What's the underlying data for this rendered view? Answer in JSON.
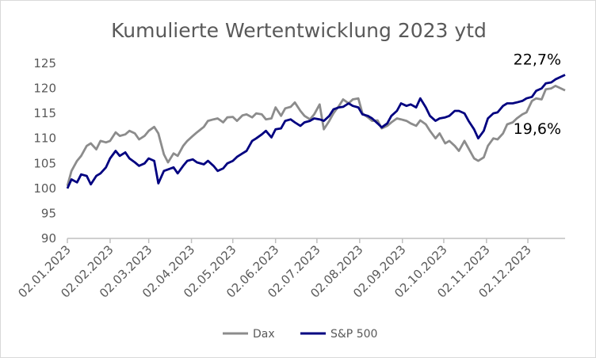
{
  "chart_data": {
    "type": "line",
    "title": "Kumulierte Wertentwicklung 2023 ytd",
    "xlabel": "",
    "ylabel": "",
    "ylim": [
      90,
      125
    ],
    "yticks": [
      90,
      95,
      100,
      105,
      110,
      115,
      120,
      125
    ],
    "xticks": [
      "02.01.2023",
      "02.02.2023",
      "02.03.2023",
      "02.04.2023",
      "02.05.2023",
      "02.06.2023",
      "02.07.2023",
      "02.08.2023",
      "02.09.2023",
      "02.10.2023",
      "02.11.2023",
      "02.12.2023"
    ],
    "xlim": [
      "2023-01-02",
      "2023-12-29"
    ],
    "grid": false,
    "legend": "bottom",
    "colors": {
      "dax": "#8c8c8c",
      "sp500": "#000080",
      "axis": "#bfbfbf"
    },
    "annotations": [
      {
        "text": "22,7%",
        "series": "S&P 500"
      },
      {
        "text": "19,6%",
        "series": "Dax"
      }
    ],
    "series": [
      {
        "name": "Dax",
        "x": [
          "2023-01-02",
          "2023-01-05",
          "2023-01-09",
          "2023-01-12",
          "2023-01-16",
          "2023-01-19",
          "2023-01-23",
          "2023-01-26",
          "2023-01-30",
          "2023-02-02",
          "2023-02-06",
          "2023-02-09",
          "2023-02-13",
          "2023-02-16",
          "2023-02-20",
          "2023-02-23",
          "2023-02-27",
          "2023-03-02",
          "2023-03-06",
          "2023-03-09",
          "2023-03-13",
          "2023-03-16",
          "2023-03-20",
          "2023-03-23",
          "2023-03-27",
          "2023-03-30",
          "2023-04-03",
          "2023-04-06",
          "2023-04-11",
          "2023-04-14",
          "2023-04-18",
          "2023-04-21",
          "2023-04-25",
          "2023-04-28",
          "2023-05-02",
          "2023-05-05",
          "2023-05-09",
          "2023-05-12",
          "2023-05-16",
          "2023-05-19",
          "2023-05-23",
          "2023-05-26",
          "2023-05-30",
          "2023-06-02",
          "2023-06-06",
          "2023-06-09",
          "2023-06-13",
          "2023-06-16",
          "2023-06-20",
          "2023-06-23",
          "2023-06-27",
          "2023-06-30",
          "2023-07-04",
          "2023-07-07",
          "2023-07-11",
          "2023-07-14",
          "2023-07-18",
          "2023-07-21",
          "2023-07-25",
          "2023-07-28",
          "2023-08-01",
          "2023-08-04",
          "2023-08-08",
          "2023-08-11",
          "2023-08-15",
          "2023-08-18",
          "2023-08-22",
          "2023-08-25",
          "2023-08-29",
          "2023-09-01",
          "2023-09-05",
          "2023-09-08",
          "2023-09-12",
          "2023-09-15",
          "2023-09-19",
          "2023-09-22",
          "2023-09-26",
          "2023-09-29",
          "2023-10-03",
          "2023-10-06",
          "2023-10-10",
          "2023-10-13",
          "2023-10-17",
          "2023-10-20",
          "2023-10-24",
          "2023-10-27",
          "2023-10-31",
          "2023-11-03",
          "2023-11-07",
          "2023-11-10",
          "2023-11-14",
          "2023-11-17",
          "2023-11-21",
          "2023-11-24",
          "2023-11-28",
          "2023-12-01",
          "2023-12-05",
          "2023-12-08",
          "2023-12-12",
          "2023-12-15",
          "2023-12-19",
          "2023-12-22",
          "2023-12-29"
        ],
        "values": [
          100.5,
          103.5,
          105.5,
          106.5,
          108.5,
          109.0,
          107.8,
          109.5,
          109.2,
          109.5,
          111.2,
          110.5,
          110.8,
          111.5,
          111.0,
          109.8,
          110.5,
          111.5,
          112.3,
          111.0,
          106.8,
          105.2,
          107.0,
          106.5,
          108.5,
          109.5,
          110.5,
          111.2,
          112.3,
          113.5,
          113.8,
          114.0,
          113.2,
          114.2,
          114.3,
          113.5,
          114.6,
          114.8,
          114.2,
          115.0,
          114.8,
          113.8,
          114.0,
          116.2,
          114.5,
          116.0,
          116.3,
          117.2,
          115.5,
          114.5,
          113.8,
          114.8,
          116.8,
          111.8,
          113.5,
          115.0,
          116.5,
          117.8,
          117.0,
          117.8,
          118.0,
          115.0,
          114.2,
          113.5,
          113.6,
          112.0,
          112.5,
          113.2,
          114.0,
          113.8,
          113.5,
          113.0,
          112.5,
          113.6,
          112.8,
          111.5,
          110.0,
          111.0,
          109.0,
          109.5,
          108.5,
          107.5,
          109.5,
          108.0,
          106.0,
          105.5,
          106.2,
          108.5,
          110.0,
          109.8,
          111.0,
          112.8,
          113.2,
          114.0,
          114.8,
          115.2,
          117.5,
          118.0,
          117.8,
          119.8,
          120.0,
          120.5,
          119.6
        ]
      },
      {
        "name": "S&P 500",
        "x": [
          "2023-01-02",
          "2023-01-05",
          "2023-01-09",
          "2023-01-12",
          "2023-01-16",
          "2023-01-19",
          "2023-01-23",
          "2023-01-26",
          "2023-01-30",
          "2023-02-02",
          "2023-02-06",
          "2023-02-09",
          "2023-02-13",
          "2023-02-16",
          "2023-02-20",
          "2023-02-23",
          "2023-02-27",
          "2023-03-02",
          "2023-03-06",
          "2023-03-09",
          "2023-03-13",
          "2023-03-16",
          "2023-03-20",
          "2023-03-23",
          "2023-03-27",
          "2023-03-30",
          "2023-04-03",
          "2023-04-06",
          "2023-04-11",
          "2023-04-14",
          "2023-04-18",
          "2023-04-21",
          "2023-04-25",
          "2023-04-28",
          "2023-05-02",
          "2023-05-05",
          "2023-05-09",
          "2023-05-12",
          "2023-05-16",
          "2023-05-19",
          "2023-05-23",
          "2023-05-26",
          "2023-05-30",
          "2023-06-02",
          "2023-06-06",
          "2023-06-09",
          "2023-06-13",
          "2023-06-16",
          "2023-06-20",
          "2023-06-23",
          "2023-06-27",
          "2023-06-30",
          "2023-07-04",
          "2023-07-07",
          "2023-07-11",
          "2023-07-14",
          "2023-07-18",
          "2023-07-21",
          "2023-07-25",
          "2023-07-28",
          "2023-08-01",
          "2023-08-04",
          "2023-08-08",
          "2023-08-11",
          "2023-08-15",
          "2023-08-18",
          "2023-08-22",
          "2023-08-25",
          "2023-08-29",
          "2023-09-01",
          "2023-09-05",
          "2023-09-08",
          "2023-09-12",
          "2023-09-15",
          "2023-09-19",
          "2023-09-22",
          "2023-09-26",
          "2023-09-29",
          "2023-10-03",
          "2023-10-06",
          "2023-10-10",
          "2023-10-13",
          "2023-10-17",
          "2023-10-20",
          "2023-10-24",
          "2023-10-27",
          "2023-10-31",
          "2023-11-03",
          "2023-11-07",
          "2023-11-10",
          "2023-11-14",
          "2023-11-17",
          "2023-11-21",
          "2023-11-24",
          "2023-11-28",
          "2023-12-01",
          "2023-12-05",
          "2023-12-08",
          "2023-12-12",
          "2023-12-15",
          "2023-12-19",
          "2023-12-22",
          "2023-12-29"
        ],
        "values": [
          100.0,
          101.8,
          101.2,
          102.8,
          102.5,
          100.8,
          102.5,
          103.0,
          104.2,
          106.0,
          107.5,
          106.5,
          107.2,
          106.0,
          105.2,
          104.5,
          105.0,
          106.0,
          105.5,
          101.0,
          103.5,
          103.8,
          104.2,
          103.0,
          104.5,
          105.5,
          105.8,
          105.2,
          104.8,
          105.5,
          104.5,
          103.5,
          104.0,
          105.0,
          105.5,
          106.3,
          107.0,
          107.5,
          109.5,
          110.0,
          110.8,
          111.5,
          110.2,
          111.8,
          112.0,
          113.5,
          113.8,
          113.2,
          112.5,
          113.2,
          113.5,
          114.0,
          113.8,
          113.5,
          114.5,
          115.8,
          116.2,
          116.3,
          117.0,
          116.5,
          116.2,
          114.8,
          114.5,
          114.0,
          113.0,
          112.2,
          113.0,
          114.5,
          115.5,
          117.0,
          116.5,
          116.8,
          116.2,
          118.0,
          116.2,
          114.5,
          113.5,
          114.0,
          114.2,
          114.5,
          115.5,
          115.5,
          115.0,
          113.5,
          111.8,
          110.0,
          111.5,
          114.0,
          115.0,
          115.2,
          116.5,
          117.0,
          117.0,
          117.2,
          117.5,
          118.0,
          118.3,
          119.5,
          120.0,
          121.0,
          121.2,
          121.8,
          122.7
        ]
      }
    ]
  }
}
